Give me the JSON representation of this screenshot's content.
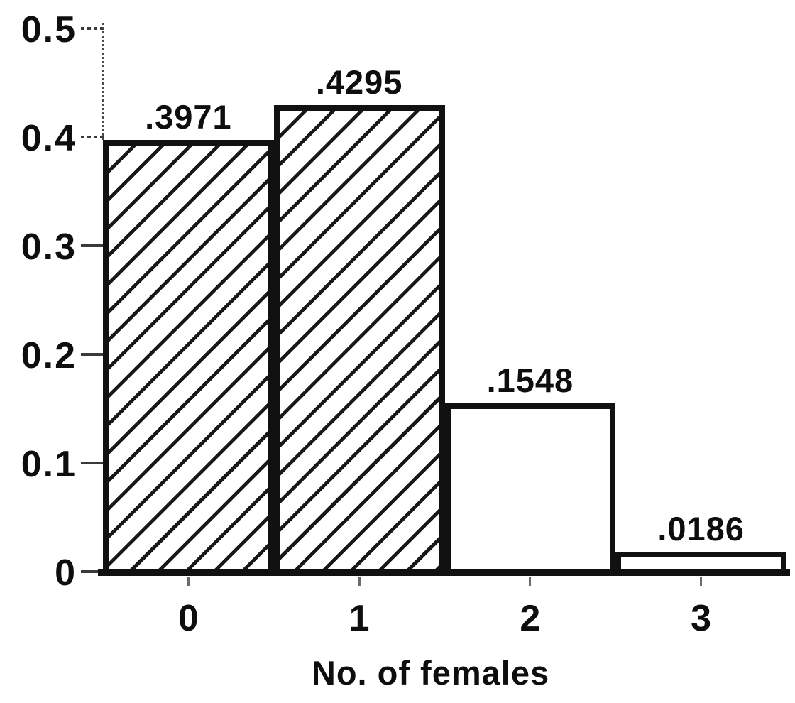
{
  "chart_data": {
    "type": "bar",
    "title": "",
    "xlabel": "No. of females",
    "ylabel": "",
    "categories": [
      "0",
      "1",
      "2",
      "3"
    ],
    "values": [
      0.3971,
      0.4295,
      0.1548,
      0.0186
    ],
    "bar_value_labels": [
      ".3971",
      ".4295",
      ".1548",
      ".0186"
    ],
    "bar_fill_styles": [
      "hatched-diagonal",
      "hatched-diagonal",
      "white",
      "white"
    ],
    "ylim": [
      0,
      0.5
    ],
    "yticks": [
      0,
      0.1,
      0.2,
      0.3,
      0.4,
      0.5
    ],
    "ytick_labels": [
      "0",
      "0.1",
      "0.2",
      "0.3",
      "0.4",
      "0.5"
    ],
    "grid": false,
    "legend_position": "none",
    "colors": {
      "ink": "#111111",
      "background": "#ffffff"
    }
  }
}
